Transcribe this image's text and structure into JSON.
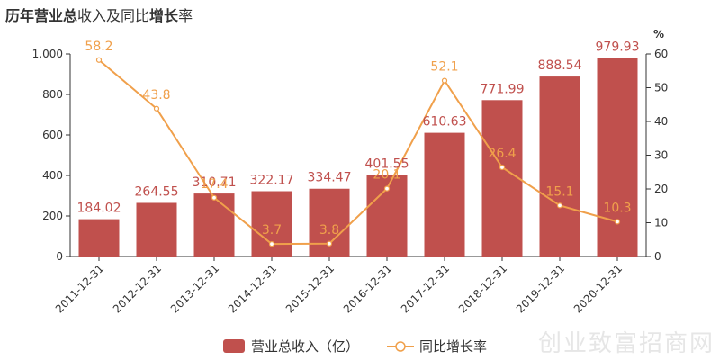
{
  "title_parts": [
    {
      "text": "历年",
      "bold": true
    },
    {
      "text": "营业总",
      "bold": true
    },
    {
      "text": "收入及同比",
      "bold": false
    },
    {
      "text": "增长",
      "bold": true
    },
    {
      "text": "率",
      "bold": false
    }
  ],
  "watermark": "创业致富招商网",
  "chart_data": {
    "type": "bar",
    "categories": [
      "2011-12-31",
      "2012-12-31",
      "2013-12-31",
      "2014-12-31",
      "2015-12-31",
      "2016-12-31",
      "2017-12-31",
      "2018-12-31",
      "2019-12-31",
      "2020-12-31"
    ],
    "series": [
      {
        "name": "营业总收入（亿）",
        "type": "bar",
        "axis": "left",
        "color": "#c0504d",
        "values": [
          184.02,
          264.55,
          310.71,
          322.17,
          334.47,
          401.55,
          610.63,
          771.99,
          888.54,
          979.93
        ],
        "labels": [
          "184.02",
          "264.55",
          "310.71",
          "322.17",
          "334.47",
          "401.55",
          "610.63",
          "771.99",
          "888.54",
          "979.93"
        ]
      },
      {
        "name": "同比增长率",
        "type": "line",
        "axis": "right",
        "color": "#f0a04b",
        "values": [
          58.2,
          43.8,
          17.4,
          3.7,
          3.8,
          20.1,
          52.1,
          26.4,
          15.1,
          10.3
        ],
        "labels": [
          "58.2",
          "43.8",
          "17.4",
          "3.7",
          "3.8",
          "20.1",
          "52.1",
          "26.4",
          "15.1",
          "10.3"
        ]
      }
    ],
    "y_left": {
      "min": 0,
      "max": 1000,
      "ticks": [
        0,
        200,
        400,
        600,
        800,
        1000
      ],
      "tick_labels": [
        "0",
        "200",
        "400",
        "600",
        "800",
        "1,000"
      ]
    },
    "y_right": {
      "min": 0,
      "max": 60,
      "ticks": [
        0,
        10,
        20,
        30,
        40,
        50,
        60
      ],
      "tick_labels": [
        "0",
        "10",
        "20",
        "30",
        "40",
        "50",
        "60"
      ],
      "unit": "%"
    },
    "grid": false,
    "legend_position": "bottom-center"
  }
}
